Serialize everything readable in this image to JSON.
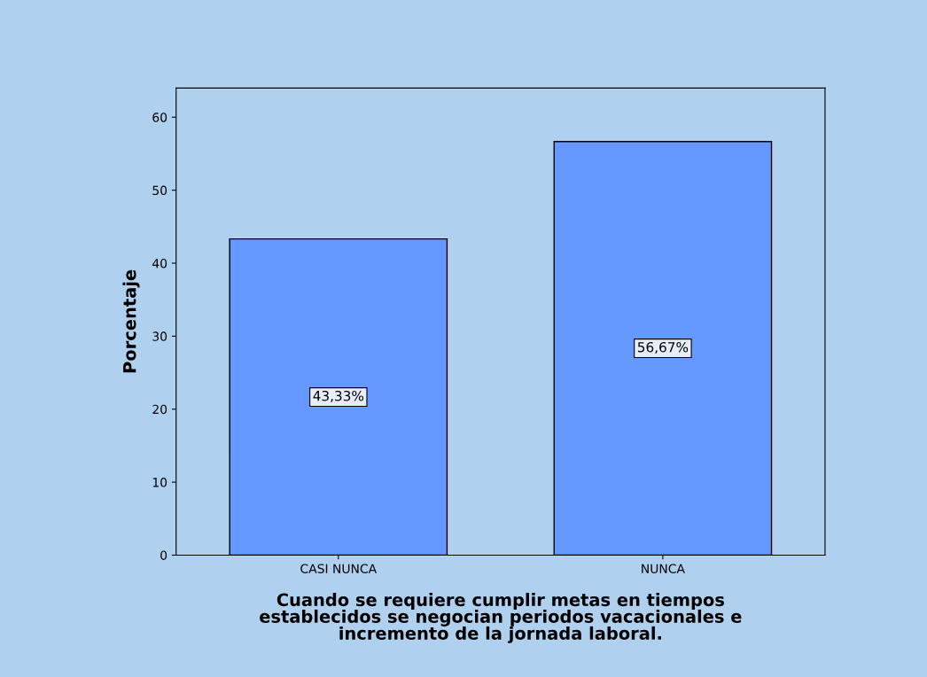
{
  "chart_data": {
    "type": "bar",
    "categories": [
      "CASI NUNCA",
      "NUNCA"
    ],
    "values": [
      43.33,
      56.67
    ],
    "value_labels": [
      "43,33%",
      "56,67%"
    ],
    "color": "#6699ff",
    "xlabel": "Cuando se requiere cumplir metas en tiempos\nestablecidos se negocian periodos vacacionales e\nincremento de la jornada laboral.",
    "ylabel": "Porcentaje",
    "ylim": [
      0,
      64
    ],
    "yticks": [
      0,
      10,
      20,
      30,
      40,
      50,
      60
    ],
    "grid": false
  }
}
